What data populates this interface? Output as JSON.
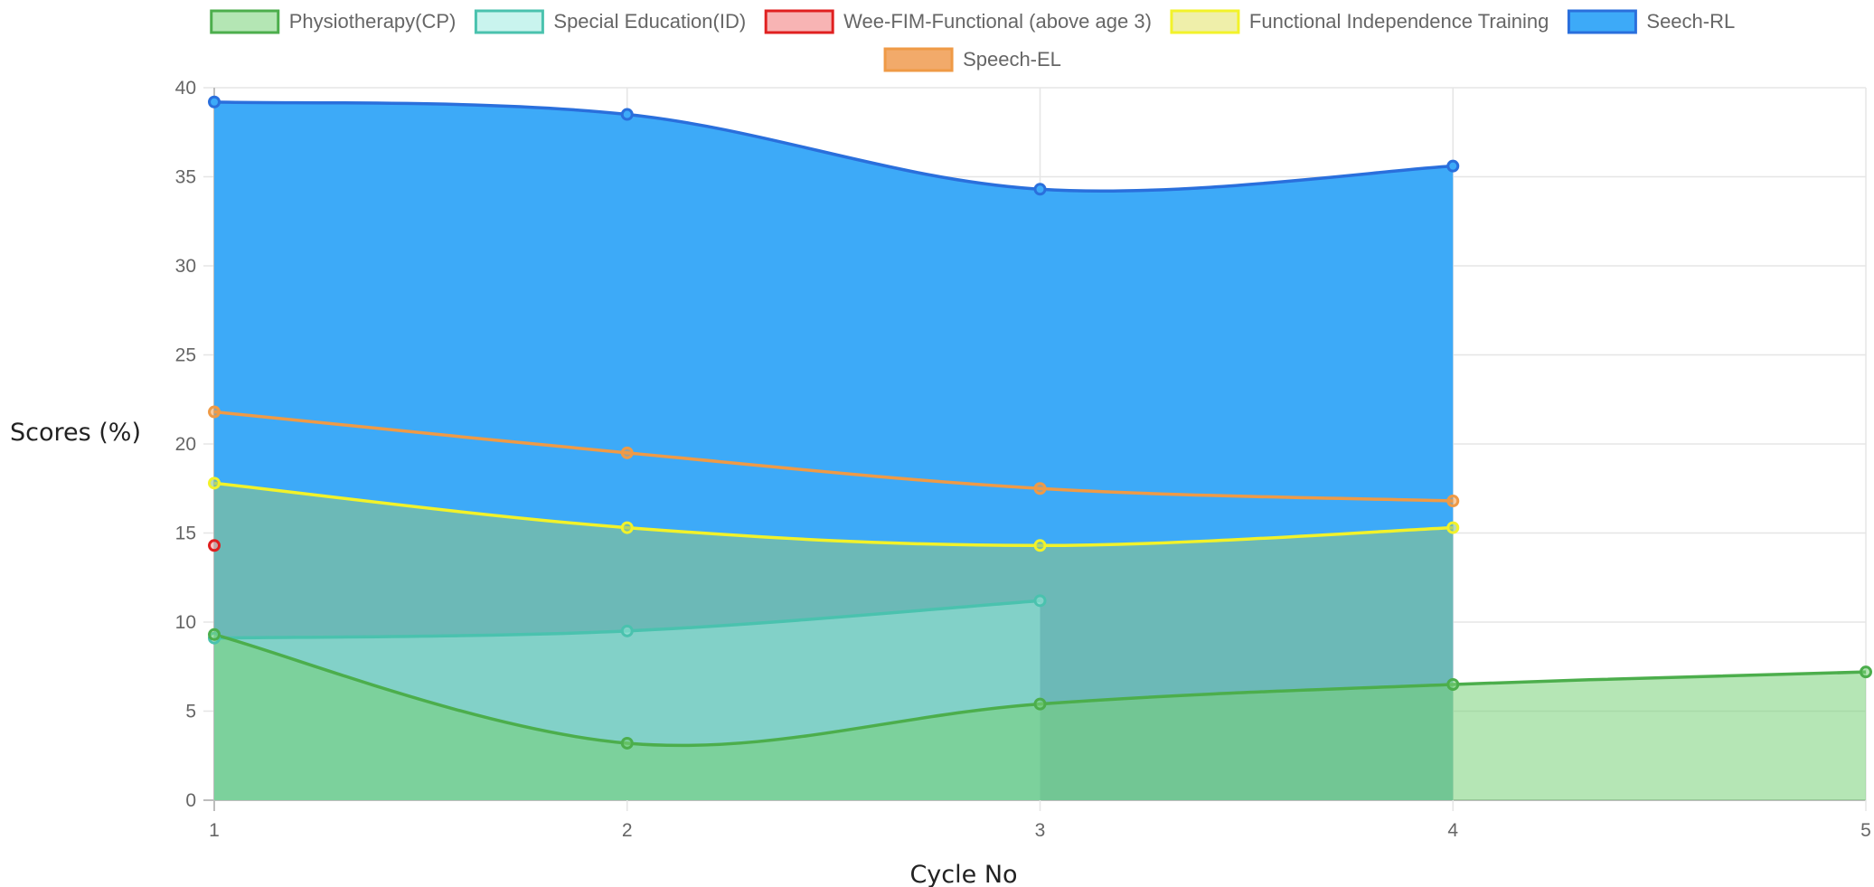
{
  "chart_data": {
    "type": "area",
    "xlabel": "Cycle No",
    "ylabel": "Scores (%)",
    "x": [
      1,
      2,
      3,
      4,
      5
    ],
    "x_ticks": [
      "1",
      "2",
      "3",
      "4",
      "5"
    ],
    "y_ticks": [
      "0",
      "5",
      "10",
      "15",
      "20",
      "25",
      "30",
      "35",
      "40"
    ],
    "ylim": [
      0,
      40
    ],
    "xlim": [
      1,
      5
    ],
    "grid": true,
    "legend_position": "top",
    "series": [
      {
        "name": "Physiotherapy(CP)",
        "x": [
          1,
          2,
          3,
          4,
          5
        ],
        "values": [
          9.3,
          3.2,
          5.4,
          6.5,
          7.2
        ],
        "line": "#4cae4c",
        "fill": "rgba(120, 210, 120, 0.55)",
        "point": "#4cae4c"
      },
      {
        "name": "Special Education(ID)",
        "x": [
          1,
          2,
          3
        ],
        "values": [
          9.1,
          9.5,
          11.2
        ],
        "line": "#4ac2ae",
        "fill": "rgba(150, 230, 215, 0.55)",
        "point": "#4ac2ae"
      },
      {
        "name": "Wee-FIM-Functional (above age 3)",
        "x": [
          1
        ],
        "values": [
          14.3
        ],
        "line": "#e02020",
        "fill": "rgba(245, 160, 160, 0.6)",
        "point": "#e02020"
      },
      {
        "name": "Functional Independence Training",
        "x": [
          1,
          2,
          3,
          4
        ],
        "values": [
          17.8,
          15.3,
          14.3,
          15.3
        ],
        "line": "#f2f22a",
        "fill": "rgba(140, 195, 140, 0.6)",
        "point": "#f2f22a"
      },
      {
        "name": "Seech-RL",
        "x": [
          1,
          2,
          3,
          4
        ],
        "values": [
          39.2,
          38.5,
          34.3,
          35.6
        ],
        "line": "#2a6fdc",
        "fill": "#3daaf8",
        "point": "#2a6fdc"
      },
      {
        "name": "Speech-EL",
        "x": [
          1,
          2,
          3,
          4
        ],
        "values": [
          21.8,
          19.5,
          17.5,
          16.8
        ],
        "line": "#ef9a46",
        "fill": "rgba(239, 154, 70, 0.0)",
        "point": "#ef9a46"
      }
    ]
  }
}
